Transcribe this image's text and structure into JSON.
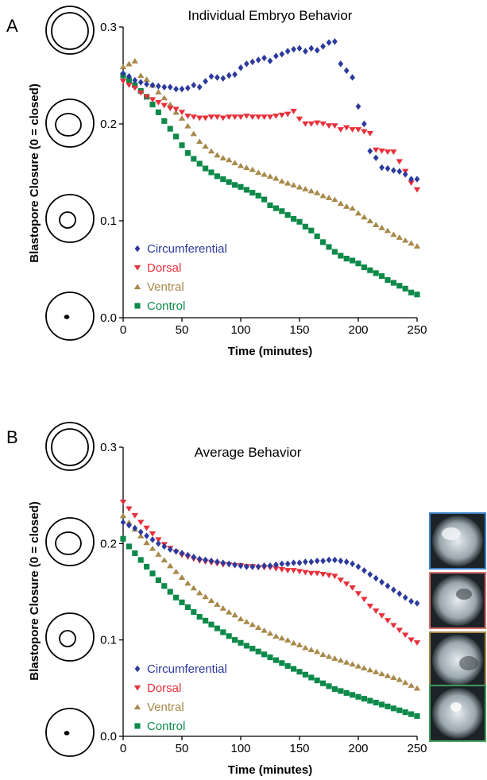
{
  "colors": {
    "circumferential": "#2b3a9c",
    "dorsal": "#e8303a",
    "ventral": "#a8894a",
    "control": "#0d8a4a",
    "photo_borders": [
      "#3f7fc8",
      "#d9706a",
      "#a8894a",
      "#3f9a5a"
    ]
  },
  "panels": [
    {
      "letter": "A",
      "chart_data": {
        "type": "scatter",
        "title": "Individual Embryo Behavior",
        "xlabel": "Time (minutes)",
        "ylabel": "Blastopore Closure (0 = closed)",
        "xlim": [
          0,
          250
        ],
        "ylim": [
          0,
          0.3
        ],
        "xticks": [
          "0",
          "50",
          "100",
          "150",
          "200",
          "250"
        ],
        "yticks": [
          "0.0",
          "0.1",
          "0.2",
          "0.3"
        ],
        "legend_position": "lower-left",
        "series": [
          {
            "name": "Circumferential",
            "marker": "diamond",
            "x": [
              0,
              5,
              10,
              15,
              20,
              25,
              30,
              35,
              40,
              45,
              50,
              55,
              60,
              65,
              70,
              75,
              80,
              85,
              90,
              95,
              100,
              105,
              110,
              115,
              120,
              125,
              130,
              135,
              140,
              145,
              150,
              155,
              160,
              165,
              170,
              175,
              180,
              185,
              190,
              195,
              200,
              205,
              210,
              215,
              220,
              225,
              230,
              235,
              240,
              245,
              250
            ],
            "y": [
              0.252,
              0.249,
              0.245,
              0.243,
              0.241,
              0.24,
              0.239,
              0.238,
              0.238,
              0.236,
              0.236,
              0.237,
              0.24,
              0.238,
              0.244,
              0.249,
              0.248,
              0.247,
              0.25,
              0.251,
              0.258,
              0.262,
              0.264,
              0.266,
              0.268,
              0.265,
              0.27,
              0.272,
              0.275,
              0.277,
              0.278,
              0.275,
              0.278,
              0.276,
              0.28,
              0.284,
              0.285,
              0.262,
              0.255,
              0.248,
              0.218,
              0.2,
              0.172,
              0.165,
              0.155,
              0.154,
              0.152,
              0.151,
              0.148,
              0.143,
              0.143
            ]
          },
          {
            "name": "Dorsal",
            "marker": "triangle-down",
            "x": [
              0,
              5,
              10,
              15,
              20,
              25,
              30,
              35,
              40,
              45,
              50,
              55,
              60,
              65,
              70,
              75,
              80,
              85,
              90,
              95,
              100,
              105,
              110,
              115,
              120,
              125,
              130,
              135,
              140,
              145,
              150,
              155,
              160,
              165,
              170,
              175,
              180,
              185,
              190,
              195,
              200,
              205,
              210,
              215,
              220,
              225,
              230,
              235,
              240,
              245,
              250
            ],
            "y": [
              0.244,
              0.24,
              0.237,
              0.232,
              0.228,
              0.225,
              0.222,
              0.219,
              0.216,
              0.215,
              0.212,
              0.208,
              0.207,
              0.206,
              0.206,
              0.207,
              0.207,
              0.206,
              0.207,
              0.207,
              0.207,
              0.208,
              0.207,
              0.207,
              0.207,
              0.207,
              0.208,
              0.209,
              0.21,
              0.213,
              0.205,
              0.2,
              0.2,
              0.201,
              0.2,
              0.198,
              0.198,
              0.194,
              0.196,
              0.194,
              0.194,
              0.192,
              0.19,
              0.173,
              0.172,
              0.171,
              0.171,
              0.161,
              0.151,
              0.139,
              0.132
            ]
          },
          {
            "name": "Ventral",
            "marker": "triangle-up",
            "x": [
              0,
              5,
              10,
              15,
              20,
              25,
              30,
              35,
              40,
              45,
              50,
              55,
              60,
              65,
              70,
              75,
              80,
              85,
              90,
              95,
              100,
              105,
              110,
              115,
              120,
              125,
              130,
              135,
              140,
              145,
              150,
              155,
              160,
              165,
              170,
              175,
              180,
              185,
              190,
              195,
              200,
              205,
              210,
              215,
              220,
              225,
              230,
              235,
              240,
              245,
              250
            ],
            "y": [
              0.259,
              0.262,
              0.265,
              0.25,
              0.246,
              0.24,
              0.233,
              0.227,
              0.22,
              0.212,
              0.206,
              0.198,
              0.19,
              0.182,
              0.177,
              0.172,
              0.168,
              0.165,
              0.163,
              0.16,
              0.157,
              0.155,
              0.153,
              0.15,
              0.148,
              0.146,
              0.144,
              0.141,
              0.139,
              0.137,
              0.135,
              0.133,
              0.131,
              0.129,
              0.126,
              0.124,
              0.122,
              0.118,
              0.115,
              0.113,
              0.108,
              0.104,
              0.1,
              0.096,
              0.093,
              0.09,
              0.086,
              0.083,
              0.08,
              0.077,
              0.074
            ]
          },
          {
            "name": "Control",
            "marker": "square",
            "x": [
              0,
              5,
              10,
              15,
              20,
              25,
              30,
              35,
              40,
              45,
              50,
              55,
              60,
              65,
              70,
              75,
              80,
              85,
              90,
              95,
              100,
              105,
              110,
              115,
              120,
              125,
              130,
              135,
              140,
              145,
              150,
              155,
              160,
              165,
              170,
              175,
              180,
              185,
              190,
              195,
              200,
              205,
              210,
              215,
              220,
              225,
              230,
              235,
              240,
              245,
              250
            ],
            "y": [
              0.25,
              0.245,
              0.24,
              0.234,
              0.228,
              0.22,
              0.212,
              0.203,
              0.195,
              0.187,
              0.178,
              0.17,
              0.164,
              0.159,
              0.154,
              0.15,
              0.146,
              0.143,
              0.14,
              0.137,
              0.135,
              0.132,
              0.129,
              0.126,
              0.122,
              0.116,
              0.113,
              0.11,
              0.106,
              0.102,
              0.099,
              0.094,
              0.09,
              0.084,
              0.078,
              0.073,
              0.068,
              0.064,
              0.061,
              0.059,
              0.056,
              0.052,
              0.049,
              0.046,
              0.043,
              0.039,
              0.036,
              0.033,
              0.03,
              0.026,
              0.024
            ]
          }
        ]
      }
    },
    {
      "letter": "B",
      "chart_data": {
        "type": "scatter",
        "title": "Average Behavior",
        "xlabel": "Time (minutes)",
        "ylabel": "Blastopore Closure (0 = closed)",
        "xlim": [
          0,
          250
        ],
        "ylim": [
          0,
          0.3
        ],
        "xticks": [
          "0",
          "50",
          "100",
          "150",
          "200",
          "250"
        ],
        "yticks": [
          "0.0",
          "0.1",
          "0.2",
          "0.3"
        ],
        "legend_position": "lower-left",
        "series": [
          {
            "name": "Circumferential",
            "marker": "diamond",
            "x": [
              0,
              5,
              10,
              15,
              20,
              25,
              30,
              35,
              40,
              45,
              50,
              55,
              60,
              65,
              70,
              75,
              80,
              85,
              90,
              95,
              100,
              105,
              110,
              115,
              120,
              125,
              130,
              135,
              140,
              145,
              150,
              155,
              160,
              165,
              170,
              175,
              180,
              185,
              190,
              195,
              200,
              205,
              210,
              215,
              220,
              225,
              230,
              235,
              240,
              245,
              250
            ],
            "y": [
              0.222,
              0.219,
              0.216,
              0.212,
              0.208,
              0.204,
              0.2,
              0.197,
              0.194,
              0.192,
              0.19,
              0.188,
              0.186,
              0.184,
              0.183,
              0.182,
              0.181,
              0.18,
              0.179,
              0.178,
              0.177,
              0.176,
              0.176,
              0.176,
              0.177,
              0.177,
              0.178,
              0.179,
              0.179,
              0.18,
              0.18,
              0.181,
              0.181,
              0.182,
              0.182,
              0.183,
              0.183,
              0.182,
              0.181,
              0.179,
              0.176,
              0.172,
              0.168,
              0.164,
              0.16,
              0.156,
              0.152,
              0.148,
              0.144,
              0.14,
              0.138
            ]
          },
          {
            "name": "Dorsal",
            "marker": "triangle-down",
            "x": [
              0,
              5,
              10,
              15,
              20,
              25,
              30,
              35,
              40,
              45,
              50,
              55,
              60,
              65,
              70,
              75,
              80,
              85,
              90,
              95,
              100,
              105,
              110,
              115,
              120,
              125,
              130,
              135,
              140,
              145,
              150,
              155,
              160,
              165,
              170,
              175,
              180,
              185,
              190,
              195,
              200,
              205,
              210,
              215,
              220,
              225,
              230,
              235,
              240,
              245,
              250
            ],
            "y": [
              0.243,
              0.236,
              0.229,
              0.222,
              0.216,
              0.21,
              0.204,
              0.199,
              0.195,
              0.191,
              0.188,
              0.186,
              0.184,
              0.182,
              0.181,
              0.18,
              0.179,
              0.178,
              0.178,
              0.177,
              0.177,
              0.176,
              0.176,
              0.175,
              0.175,
              0.175,
              0.174,
              0.173,
              0.172,
              0.172,
              0.171,
              0.17,
              0.169,
              0.169,
              0.168,
              0.167,
              0.166,
              0.162,
              0.158,
              0.154,
              0.148,
              0.142,
              0.135,
              0.13,
              0.125,
              0.12,
              0.115,
              0.11,
              0.105,
              0.1,
              0.097
            ]
          },
          {
            "name": "Ventral",
            "marker": "triangle-up",
            "x": [
              0,
              5,
              10,
              15,
              20,
              25,
              30,
              35,
              40,
              45,
              50,
              55,
              60,
              65,
              70,
              75,
              80,
              85,
              90,
              95,
              100,
              105,
              110,
              115,
              120,
              125,
              130,
              135,
              140,
              145,
              150,
              155,
              160,
              165,
              170,
              175,
              180,
              185,
              190,
              195,
              200,
              205,
              210,
              215,
              220,
              225,
              230,
              235,
              240,
              245,
              250
            ],
            "y": [
              0.229,
              0.222,
              0.215,
              0.208,
              0.201,
              0.195,
              0.189,
              0.183,
              0.177,
              0.171,
              0.165,
              0.159,
              0.154,
              0.149,
              0.145,
              0.141,
              0.137,
              0.133,
              0.129,
              0.126,
              0.122,
              0.119,
              0.116,
              0.113,
              0.11,
              0.107,
              0.104,
              0.102,
              0.1,
              0.097,
              0.095,
              0.092,
              0.09,
              0.088,
              0.085,
              0.083,
              0.081,
              0.079,
              0.077,
              0.075,
              0.073,
              0.071,
              0.069,
              0.067,
              0.065,
              0.063,
              0.061,
              0.059,
              0.056,
              0.053,
              0.05
            ]
          },
          {
            "name": "Control",
            "marker": "square",
            "x": [
              0,
              5,
              10,
              15,
              20,
              25,
              30,
              35,
              40,
              45,
              50,
              55,
              60,
              65,
              70,
              75,
              80,
              85,
              90,
              95,
              100,
              105,
              110,
              115,
              120,
              125,
              130,
              135,
              140,
              145,
              150,
              155,
              160,
              165,
              170,
              175,
              180,
              185,
              190,
              195,
              200,
              205,
              210,
              215,
              220,
              225,
              230,
              235,
              240,
              245,
              250
            ],
            "y": [
              0.205,
              0.197,
              0.19,
              0.183,
              0.176,
              0.169,
              0.162,
              0.156,
              0.15,
              0.144,
              0.139,
              0.134,
              0.129,
              0.124,
              0.12,
              0.116,
              0.112,
              0.108,
              0.104,
              0.1,
              0.097,
              0.094,
              0.091,
              0.088,
              0.085,
              0.082,
              0.079,
              0.076,
              0.073,
              0.07,
              0.067,
              0.064,
              0.061,
              0.058,
              0.055,
              0.052,
              0.049,
              0.047,
              0.045,
              0.043,
              0.041,
              0.039,
              0.037,
              0.035,
              0.033,
              0.031,
              0.029,
              0.027,
              0.025,
              0.023,
              0.021
            ]
          }
        ]
      }
    }
  ],
  "schematic_icons": [
    "blastopore-stage-open-icon",
    "blastopore-stage-mid-icon",
    "blastopore-stage-small-icon",
    "blastopore-stage-closed-icon"
  ],
  "photo_icons": [
    "embryo-photo-circumferential-icon",
    "embryo-photo-dorsal-icon",
    "embryo-photo-ventral-icon",
    "embryo-photo-control-icon"
  ]
}
